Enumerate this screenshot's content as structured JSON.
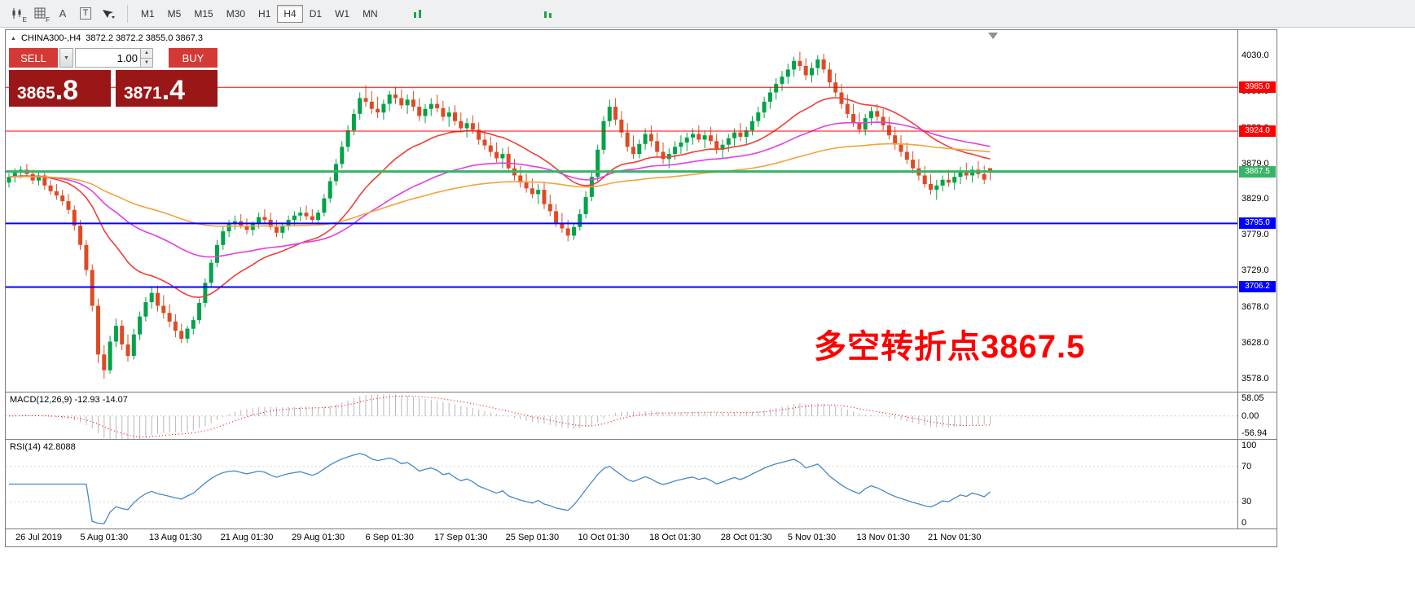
{
  "toolbar": {
    "icon_badges": {
      "first": "E",
      "second": "F"
    },
    "text_tool_label": "A",
    "label_tool_label": "T",
    "timeframes": [
      "M1",
      "M5",
      "M15",
      "M30",
      "H1",
      "H4",
      "D1",
      "W1",
      "MN"
    ],
    "active_timeframe": "H4"
  },
  "header": {
    "symbol_title": "CHINA300-,H4",
    "ohlc": "3872.2 3872.2 3855.0 3867.3"
  },
  "trade_panel": {
    "sell_label": "SELL",
    "buy_label": "BUY",
    "volume": "1.00",
    "bid_main": "3865",
    "bid_fraction": ".8",
    "ask_main": "3871",
    "ask_fraction": ".4"
  },
  "annotation": {
    "text": "多空转折点3867.5",
    "color": "#ff0000"
  },
  "indicators": {
    "macd_label": "MACD(12,26,9) -12.93 -14.07",
    "macd_axis": [
      "58.05",
      "0.00",
      "-56.94"
    ],
    "rsi_label": "RSI(14) 42.8088",
    "rsi_axis": [
      "100",
      "70",
      "30",
      "0"
    ]
  },
  "chart_data": {
    "type": "candlestick",
    "title": "CHINA300- H4",
    "y_axis": {
      "min": 3560,
      "max": 4065,
      "tick_labels": [
        "4030.0",
        "3980.0",
        "3929.0",
        "3879.0",
        "3829.0",
        "3779.0",
        "3729.0",
        "3678.0",
        "3628.0",
        "3578.0"
      ]
    },
    "x_labels": [
      "26 Jul 2019",
      "5 Aug 01:30",
      "13 Aug 01:30",
      "21 Aug 01:30",
      "29 Aug 01:30",
      "6 Sep 01:30",
      "17 Sep 01:30",
      "25 Sep 01:30",
      "10 Oct 01:30",
      "18 Oct 01:30",
      "28 Oct 01:30",
      "5 Nov 01:30",
      "13 Nov 01:30",
      "21 Nov 01:30"
    ],
    "x_label_indices": [
      5,
      16,
      28,
      40,
      52,
      64,
      76,
      88,
      100,
      112,
      124,
      135,
      147,
      159
    ],
    "colors": {
      "up": "#00a347",
      "down": "#dd4b24",
      "ma_fast": "#ee4035",
      "ma_mid": "#e040e0",
      "ma_slow": "#f2a33c",
      "rsi": "#4688c8",
      "macd_hist": "#b8b8b8",
      "macd_signal": "#ff0000"
    },
    "moving_averages": [
      {
        "period": 24,
        "color_key": "ma_fast"
      },
      {
        "period": 55,
        "color_key": "ma_mid"
      },
      {
        "period": 110,
        "color_key": "ma_slow"
      }
    ],
    "hlines": [
      {
        "value": 3985.0,
        "label": "3985.0",
        "color": "#ff0000",
        "width": 1
      },
      {
        "value": 3924.0,
        "label": "3924.0",
        "color": "#ff0000",
        "width": 1
      },
      {
        "value": 3867.5,
        "label": "3867.5",
        "color": "#35b565",
        "width": 3
      },
      {
        "value": 3795.0,
        "label": "3795.0",
        "color": "#0000ff",
        "width": 2
      },
      {
        "value": 3706.2,
        "label": "3706.2",
        "color": "#0000ff",
        "width": 2
      }
    ],
    "macd": {
      "fast": 12,
      "slow": 26,
      "signal": 9,
      "range_max": 58.05,
      "range_min": -56.94
    },
    "rsi": {
      "period": 14,
      "levels": [
        70,
        30
      ]
    },
    "candles": [
      [
        3852,
        3865,
        3845,
        3860
      ],
      [
        3860,
        3872,
        3852,
        3866
      ],
      [
        3866,
        3875,
        3858,
        3870
      ],
      [
        3870,
        3878,
        3860,
        3864
      ],
      [
        3864,
        3870,
        3850,
        3855
      ],
      [
        3855,
        3868,
        3848,
        3862
      ],
      [
        3862,
        3866,
        3842,
        3848
      ],
      [
        3848,
        3855,
        3835,
        3840
      ],
      [
        3840,
        3850,
        3828,
        3834
      ],
      [
        3834,
        3842,
        3820,
        3826
      ],
      [
        3826,
        3836,
        3808,
        3814
      ],
      [
        3814,
        3820,
        3785,
        3792
      ],
      [
        3792,
        3800,
        3758,
        3765
      ],
      [
        3765,
        3772,
        3722,
        3730
      ],
      [
        3730,
        3738,
        3672,
        3680
      ],
      [
        3680,
        3690,
        3600,
        3612
      ],
      [
        3612,
        3625,
        3578,
        3590
      ],
      [
        3590,
        3638,
        3585,
        3630
      ],
      [
        3630,
        3662,
        3622,
        3652
      ],
      [
        3652,
        3660,
        3618,
        3626
      ],
      [
        3626,
        3640,
        3602,
        3610
      ],
      [
        3610,
        3648,
        3605,
        3640
      ],
      [
        3640,
        3672,
        3632,
        3665
      ],
      [
        3665,
        3692,
        3658,
        3685
      ],
      [
        3685,
        3705,
        3676,
        3698
      ],
      [
        3698,
        3708,
        3672,
        3680
      ],
      [
        3680,
        3695,
        3662,
        3670
      ],
      [
        3670,
        3682,
        3650,
        3658
      ],
      [
        3658,
        3668,
        3636,
        3645
      ],
      [
        3645,
        3655,
        3628,
        3634
      ],
      [
        3634,
        3652,
        3628,
        3648
      ],
      [
        3648,
        3665,
        3640,
        3660
      ],
      [
        3660,
        3690,
        3655,
        3684
      ],
      [
        3684,
        3718,
        3678,
        3712
      ],
      [
        3712,
        3745,
        3706,
        3740
      ],
      [
        3740,
        3772,
        3734,
        3765
      ],
      [
        3765,
        3790,
        3758,
        3784
      ],
      [
        3784,
        3800,
        3776,
        3794
      ],
      [
        3794,
        3806,
        3786,
        3798
      ],
      [
        3798,
        3808,
        3788,
        3792
      ],
      [
        3792,
        3802,
        3780,
        3786
      ],
      [
        3786,
        3798,
        3778,
        3795
      ],
      [
        3795,
        3810,
        3788,
        3804
      ],
      [
        3804,
        3815,
        3795,
        3800
      ],
      [
        3800,
        3810,
        3786,
        3790
      ],
      [
        3790,
        3800,
        3776,
        3782
      ],
      [
        3782,
        3796,
        3774,
        3792
      ],
      [
        3792,
        3806,
        3785,
        3800
      ],
      [
        3800,
        3812,
        3792,
        3806
      ],
      [
        3806,
        3818,
        3798,
        3810
      ],
      [
        3810,
        3820,
        3800,
        3805
      ],
      [
        3805,
        3815,
        3795,
        3800
      ],
      [
        3800,
        3814,
        3794,
        3810
      ],
      [
        3810,
        3836,
        3805,
        3830
      ],
      [
        3830,
        3860,
        3824,
        3854
      ],
      [
        3854,
        3885,
        3848,
        3878
      ],
      [
        3878,
        3910,
        3872,
        3902
      ],
      [
        3902,
        3932,
        3895,
        3925
      ],
      [
        3925,
        3955,
        3918,
        3948
      ],
      [
        3948,
        3978,
        3940,
        3970
      ],
      [
        3970,
        3988,
        3958,
        3965
      ],
      [
        3965,
        3980,
        3948,
        3955
      ],
      [
        3955,
        3972,
        3942,
        3950
      ],
      [
        3950,
        3968,
        3940,
        3962
      ],
      [
        3962,
        3980,
        3952,
        3975
      ],
      [
        3975,
        3986,
        3962,
        3970
      ],
      [
        3970,
        3982,
        3955,
        3960
      ],
      [
        3960,
        3975,
        3948,
        3968
      ],
      [
        3968,
        3980,
        3952,
        3958
      ],
      [
        3958,
        3970,
        3938,
        3945
      ],
      [
        3945,
        3962,
        3935,
        3955
      ],
      [
        3955,
        3970,
        3945,
        3962
      ],
      [
        3962,
        3975,
        3950,
        3956
      ],
      [
        3956,
        3966,
        3938,
        3944
      ],
      [
        3944,
        3958,
        3930,
        3950
      ],
      [
        3950,
        3960,
        3932,
        3938
      ],
      [
        3938,
        3950,
        3922,
        3928
      ],
      [
        3928,
        3942,
        3915,
        3935
      ],
      [
        3935,
        3946,
        3920,
        3926
      ],
      [
        3926,
        3936,
        3905,
        3912
      ],
      [
        3912,
        3925,
        3898,
        3904
      ],
      [
        3904,
        3916,
        3888,
        3895
      ],
      [
        3895,
        3908,
        3880,
        3886
      ],
      [
        3886,
        3900,
        3872,
        3892
      ],
      [
        3892,
        3902,
        3866,
        3872
      ],
      [
        3872,
        3885,
        3855,
        3862
      ],
      [
        3862,
        3875,
        3845,
        3852
      ],
      [
        3852,
        3865,
        3838,
        3844
      ],
      [
        3844,
        3858,
        3830,
        3836
      ],
      [
        3836,
        3850,
        3822,
        3842
      ],
      [
        3842,
        3852,
        3815,
        3822
      ],
      [
        3822,
        3835,
        3805,
        3812
      ],
      [
        3812,
        3822,
        3790,
        3796
      ],
      [
        3796,
        3810,
        3782,
        3788
      ],
      [
        3788,
        3800,
        3770,
        3778
      ],
      [
        3778,
        3795,
        3772,
        3790
      ],
      [
        3790,
        3815,
        3785,
        3808
      ],
      [
        3808,
        3840,
        3802,
        3832
      ],
      [
        3832,
        3868,
        3826,
        3860
      ],
      [
        3860,
        3905,
        3854,
        3898
      ],
      [
        3898,
        3945,
        3892,
        3938
      ],
      [
        3938,
        3968,
        3930,
        3958
      ],
      [
        3958,
        3970,
        3932,
        3940
      ],
      [
        3940,
        3952,
        3915,
        3922
      ],
      [
        3922,
        3935,
        3895,
        3902
      ],
      [
        3902,
        3918,
        3885,
        3892
      ],
      [
        3892,
        3912,
        3886,
        3906
      ],
      [
        3906,
        3928,
        3898,
        3920
      ],
      [
        3920,
        3932,
        3902,
        3910
      ],
      [
        3910,
        3922,
        3888,
        3895
      ],
      [
        3895,
        3908,
        3878,
        3885
      ],
      [
        3885,
        3900,
        3872,
        3892
      ],
      [
        3892,
        3910,
        3884,
        3902
      ],
      [
        3902,
        3918,
        3892,
        3908
      ],
      [
        3908,
        3922,
        3896,
        3915
      ],
      [
        3915,
        3928,
        3905,
        3920
      ],
      [
        3920,
        3932,
        3908,
        3912
      ],
      [
        3912,
        3925,
        3900,
        3918
      ],
      [
        3918,
        3930,
        3905,
        3910
      ],
      [
        3910,
        3920,
        3892,
        3898
      ],
      [
        3898,
        3912,
        3885,
        3905
      ],
      [
        3905,
        3920,
        3895,
        3914
      ],
      [
        3914,
        3928,
        3902,
        3922
      ],
      [
        3922,
        3935,
        3910,
        3916
      ],
      [
        3916,
        3930,
        3905,
        3925
      ],
      [
        3925,
        3945,
        3918,
        3938
      ],
      [
        3938,
        3958,
        3930,
        3950
      ],
      [
        3950,
        3972,
        3942,
        3965
      ],
      [
        3965,
        3985,
        3955,
        3978
      ],
      [
        3978,
        3998,
        3968,
        3990
      ],
      [
        3990,
        4008,
        3980,
        4000
      ],
      [
        4000,
        4018,
        3990,
        4010
      ],
      [
        4010,
        4028,
        4000,
        4022
      ],
      [
        4022,
        4035,
        4008,
        4015
      ],
      [
        4015,
        4026,
        3995,
        4002
      ],
      [
        4002,
        4020,
        3992,
        4012
      ],
      [
        4012,
        4030,
        4002,
        4024
      ],
      [
        4024,
        4032,
        4005,
        4010
      ],
      [
        4010,
        4020,
        3985,
        3992
      ],
      [
        3992,
        4005,
        3972,
        3978
      ],
      [
        3978,
        3990,
        3955,
        3962
      ],
      [
        3962,
        3975,
        3942,
        3948
      ],
      [
        3948,
        3962,
        3930,
        3936
      ],
      [
        3936,
        3950,
        3920,
        3926
      ],
      [
        3926,
        3948,
        3918,
        3942
      ],
      [
        3942,
        3958,
        3932,
        3952
      ],
      [
        3952,
        3962,
        3938,
        3944
      ],
      [
        3944,
        3955,
        3925,
        3932
      ],
      [
        3932,
        3944,
        3912,
        3918
      ],
      [
        3918,
        3930,
        3898,
        3905
      ],
      [
        3905,
        3918,
        3888,
        3895
      ],
      [
        3895,
        3908,
        3878,
        3884
      ],
      [
        3884,
        3896,
        3865,
        3872
      ],
      [
        3872,
        3885,
        3855,
        3862
      ],
      [
        3862,
        3875,
        3845,
        3850
      ],
      [
        3850,
        3864,
        3835,
        3842
      ],
      [
        3842,
        3856,
        3828,
        3848
      ],
      [
        3848,
        3862,
        3840,
        3856
      ],
      [
        3856,
        3870,
        3846,
        3852
      ],
      [
        3852,
        3866,
        3842,
        3860
      ],
      [
        3860,
        3874,
        3850,
        3868
      ],
      [
        3868,
        3880,
        3856,
        3862
      ],
      [
        3862,
        3875,
        3852,
        3870
      ],
      [
        3870,
        3882,
        3858,
        3864
      ],
      [
        3864,
        3876,
        3850,
        3856
      ],
      [
        3872.2,
        3872.2,
        3855.0,
        3867.3
      ]
    ]
  }
}
